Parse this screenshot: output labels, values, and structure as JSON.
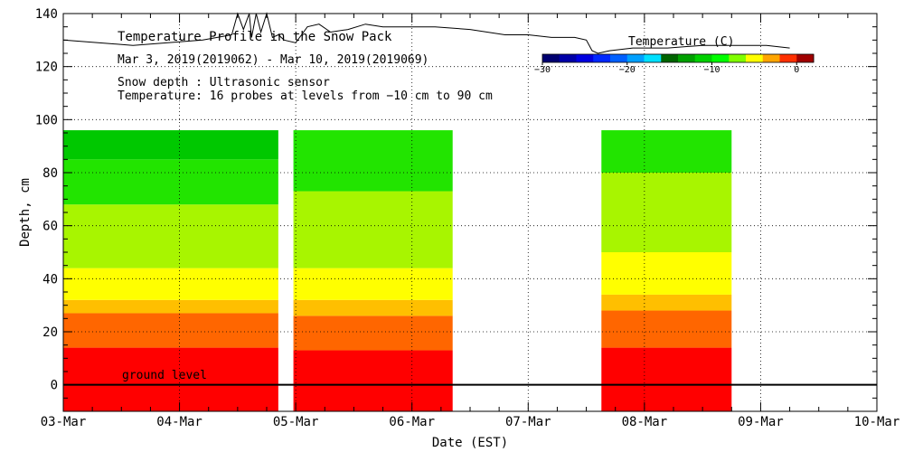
{
  "chart_data": {
    "type": "heatmap",
    "title": "Temperature Profile in the Snow Pack",
    "subtitle": "Mar  3, 2019(2019062) - Mar 10, 2019(2019069)",
    "annotations": [
      "Snow depth : Ultrasonic sensor",
      "Temperature: 16 probes at levels from −10 cm to 90 cm"
    ],
    "ground_label": "ground level",
    "xlabel": "Date (EST)",
    "ylabel": "Depth, cm",
    "x_ticks": [
      "03-Mar",
      "04-Mar",
      "05-Mar",
      "06-Mar",
      "07-Mar",
      "08-Mar",
      "09-Mar",
      "10-Mar"
    ],
    "xlim": [
      0,
      7
    ],
    "ylim": [
      -10,
      140
    ],
    "y_ticks": [
      0,
      20,
      40,
      60,
      80,
      100,
      120,
      140
    ],
    "grid": true,
    "colorbar": {
      "title": "Temperature (C)",
      "tick_labels": [
        "−30",
        "−20",
        "−10",
        "0"
      ],
      "tick_values": [
        -30,
        -20,
        -10,
        0
      ],
      "range": [
        -30,
        2
      ],
      "colors": [
        "#000070",
        "#0000a8",
        "#0000e0",
        "#0028ff",
        "#0060ff",
        "#00a0ff",
        "#00e0ff",
        "#006400",
        "#00a000",
        "#00d000",
        "#00ff00",
        "#80ff00",
        "#ffff00",
        "#ffa500",
        "#ff3000",
        "#a00000"
      ]
    },
    "segments": [
      {
        "x_start": 0.0,
        "x_end": 1.85,
        "bands": [
          {
            "bottom": -10,
            "top": 14,
            "color": "#ff0000",
            "temp": "0 to 2"
          },
          {
            "bottom": 14,
            "top": 27,
            "color": "#ff6600",
            "temp": "-1 to 0"
          },
          {
            "bottom": 27,
            "top": 32,
            "color": "#ffbf00",
            "temp": "-1.5 to -1"
          },
          {
            "bottom": 32,
            "top": 44,
            "color": "#ffff00",
            "temp": "-2 to -1.5"
          },
          {
            "bottom": 44,
            "top": 68,
            "color": "#a8f500",
            "temp": "-3 to -2"
          },
          {
            "bottom": 68,
            "top": 85,
            "color": "#22e400",
            "temp": "-5 to -3"
          },
          {
            "bottom": 85,
            "top": 96,
            "color": "#00c800",
            "temp": "-7 to -5"
          }
        ]
      },
      {
        "x_start": 1.98,
        "x_end": 3.35,
        "bands": [
          {
            "bottom": -10,
            "top": 13,
            "color": "#ff0000",
            "temp": "0 to 2"
          },
          {
            "bottom": 13,
            "top": 26,
            "color": "#ff6600",
            "temp": "-1 to 0"
          },
          {
            "bottom": 26,
            "top": 32,
            "color": "#ffbf00",
            "temp": "-1.5 to -1"
          },
          {
            "bottom": 32,
            "top": 44,
            "color": "#ffff00",
            "temp": "-2 to -1.5"
          },
          {
            "bottom": 44,
            "top": 73,
            "color": "#a8f500",
            "temp": "-3 to -2"
          },
          {
            "bottom": 73,
            "top": 96,
            "color": "#22e400",
            "temp": "-5 to -3"
          }
        ]
      },
      {
        "x_start": 4.63,
        "x_end": 5.75,
        "bands": [
          {
            "bottom": -10,
            "top": 14,
            "color": "#ff0000",
            "temp": "0 to 2"
          },
          {
            "bottom": 14,
            "top": 28,
            "color": "#ff6600",
            "temp": "-1 to 0"
          },
          {
            "bottom": 28,
            "top": 34,
            "color": "#ffbf00",
            "temp": "-1.5 to -1"
          },
          {
            "bottom": 34,
            "top": 50,
            "color": "#ffff00",
            "temp": "-2 to -1.5"
          },
          {
            "bottom": 50,
            "top": 80,
            "color": "#a8f500",
            "temp": "-3 to -2"
          },
          {
            "bottom": 80,
            "top": 96,
            "color": "#22e400",
            "temp": "-5 to -3"
          }
        ]
      }
    ],
    "snow_depth": {
      "x": [
        0.0,
        0.3,
        0.6,
        0.9,
        1.2,
        1.45,
        1.5,
        1.55,
        1.6,
        1.62,
        1.66,
        1.7,
        1.75,
        1.8,
        1.85,
        1.9,
        2.0,
        2.05,
        2.1,
        2.2,
        2.3,
        2.45,
        2.6,
        2.75,
        2.9,
        3.2,
        3.5,
        3.8,
        4.0,
        4.2,
        4.4,
        4.5,
        4.55,
        4.6,
        4.7,
        4.9,
        5.2,
        5.5,
        5.8,
        6.05,
        6.25
      ],
      "y": [
        130,
        129,
        128,
        129,
        130,
        132,
        140,
        134,
        140,
        131,
        140,
        133,
        140,
        131,
        132,
        130,
        129,
        132,
        135,
        136,
        133,
        134,
        136,
        135,
        135,
        135,
        134,
        132,
        132,
        131,
        131,
        130,
        126,
        125,
        126,
        127,
        127,
        128,
        128,
        128,
        127
      ]
    }
  }
}
